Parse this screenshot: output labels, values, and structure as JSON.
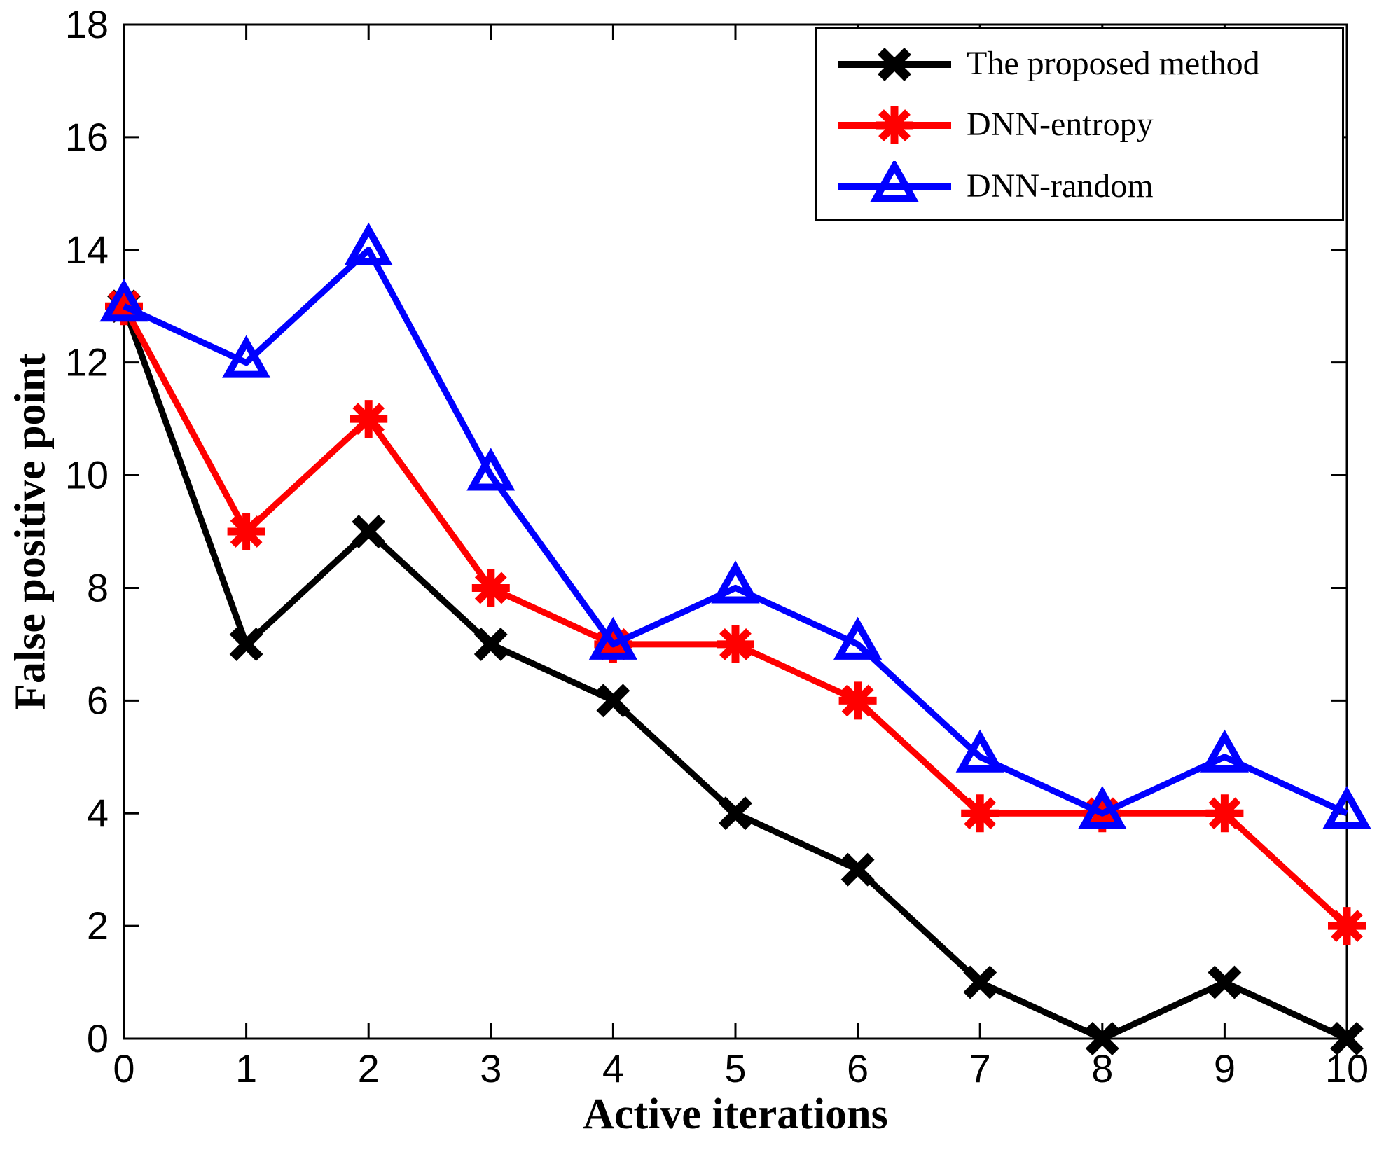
{
  "chart_data": {
    "type": "line",
    "title": "",
    "xlabel": "Active iterations",
    "ylabel": "False positive point",
    "x": [
      0,
      1,
      2,
      3,
      4,
      5,
      6,
      7,
      8,
      9,
      10
    ],
    "xlim": [
      0,
      10
    ],
    "ylim": [
      0,
      18
    ],
    "xticks": [
      0,
      1,
      2,
      3,
      4,
      5,
      6,
      7,
      8,
      9,
      10
    ],
    "yticks": [
      0,
      2,
      4,
      6,
      8,
      10,
      12,
      14,
      16,
      18
    ],
    "grid": false,
    "legend_position": "top-right",
    "axis_color": "#000000",
    "series": [
      {
        "name": "The proposed method",
        "color": "#000000",
        "marker": "x",
        "values": [
          13,
          7,
          9,
          7,
          6,
          4,
          3,
          1,
          0,
          1,
          0
        ]
      },
      {
        "name": "DNN-entropy",
        "color": "#ff0000",
        "marker": "asterisk",
        "values": [
          13,
          9,
          11,
          8,
          7,
          7,
          6,
          4,
          4,
          4,
          2
        ]
      },
      {
        "name": "DNN-random",
        "color": "#0000ff",
        "marker": "triangle-up",
        "values": [
          13,
          12,
          14,
          10,
          7,
          8,
          7,
          5,
          4,
          5,
          4
        ]
      }
    ]
  }
}
